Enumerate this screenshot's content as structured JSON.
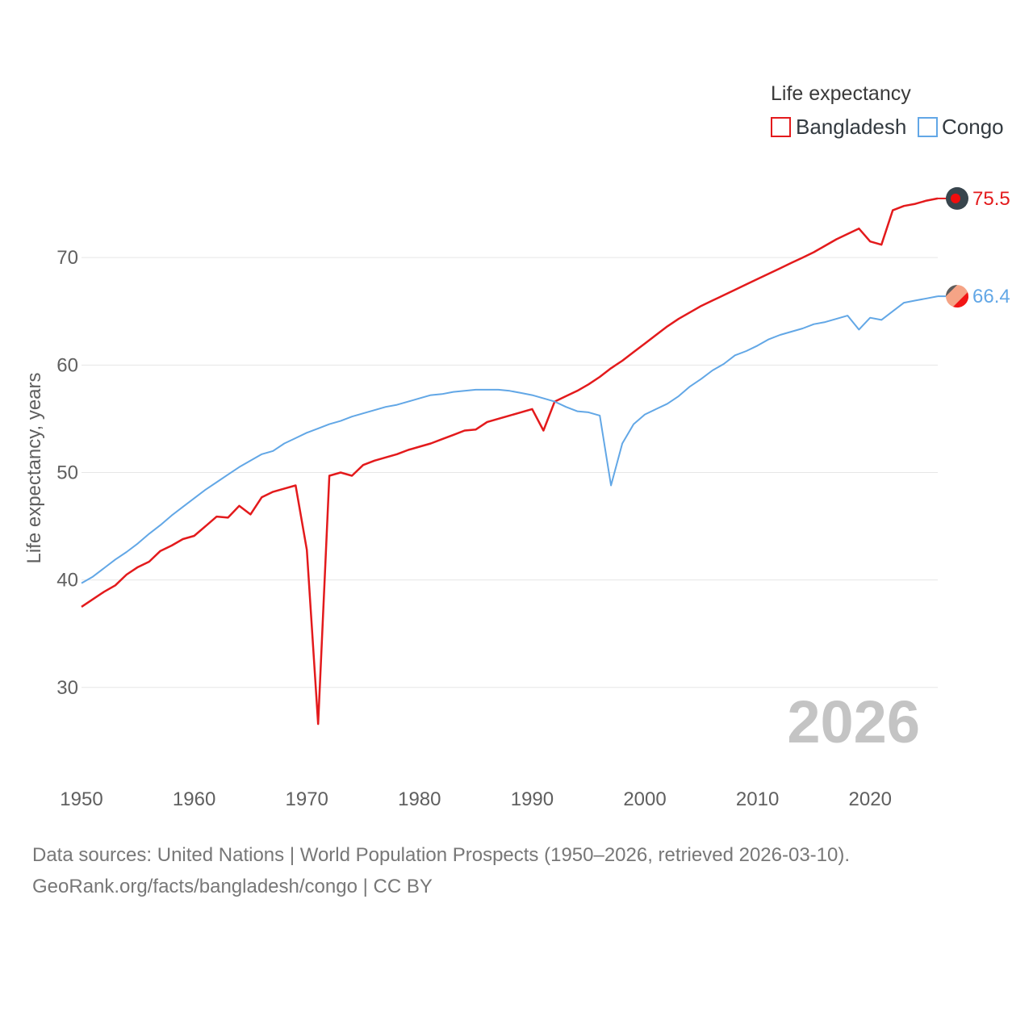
{
  "chart_data": {
    "type": "line",
    "legend_title": "Life expectancy",
    "ylabel": "Life expectancy, years",
    "xlim": [
      1950,
      2026
    ],
    "ylim": [
      23,
      80
    ],
    "x_ticks": [
      1950,
      1960,
      1970,
      1980,
      1990,
      2000,
      2010,
      2020
    ],
    "y_ticks": [
      30,
      40,
      50,
      60,
      70
    ],
    "grid": true,
    "legend_position": "top-right",
    "current_year": "2026",
    "x": [
      1950,
      1951,
      1952,
      1953,
      1954,
      1955,
      1956,
      1957,
      1958,
      1959,
      1960,
      1961,
      1962,
      1963,
      1964,
      1965,
      1966,
      1967,
      1968,
      1969,
      1970,
      1971,
      1972,
      1973,
      1974,
      1975,
      1976,
      1977,
      1978,
      1979,
      1980,
      1981,
      1982,
      1983,
      1984,
      1985,
      1986,
      1987,
      1988,
      1989,
      1990,
      1991,
      1992,
      1993,
      1994,
      1995,
      1996,
      1997,
      1998,
      1999,
      2000,
      2001,
      2002,
      2003,
      2004,
      2005,
      2006,
      2007,
      2008,
      2009,
      2010,
      2011,
      2012,
      2013,
      2014,
      2015,
      2016,
      2017,
      2018,
      2019,
      2020,
      2021,
      2022,
      2023,
      2024,
      2025,
      2026
    ],
    "series": [
      {
        "name": "Bangladesh",
        "color": "#e31a1c",
        "end_label": "75.5",
        "values": [
          37.5,
          38.2,
          38.9,
          39.5,
          40.5,
          41.2,
          41.7,
          42.7,
          43.2,
          43.8,
          44.1,
          45.0,
          45.9,
          45.8,
          46.9,
          46.1,
          47.7,
          48.2,
          48.5,
          48.8,
          42.8,
          26.6,
          49.7,
          50.0,
          49.7,
          50.7,
          51.1,
          51.4,
          51.7,
          52.1,
          52.4,
          52.7,
          53.1,
          53.5,
          53.9,
          54.0,
          54.7,
          55.0,
          55.3,
          55.6,
          55.9,
          53.9,
          56.6,
          57.1,
          57.6,
          58.2,
          58.9,
          59.7,
          60.4,
          61.2,
          62.0,
          62.8,
          63.6,
          64.3,
          64.9,
          65.5,
          66.0,
          66.5,
          67.0,
          67.5,
          68.0,
          68.5,
          69.0,
          69.5,
          70.0,
          70.5,
          71.1,
          71.7,
          72.2,
          72.7,
          71.5,
          71.2,
          74.4,
          74.8,
          75.0,
          75.3,
          75.5
        ]
      },
      {
        "name": "Congo",
        "color": "#62a7e6",
        "end_label": "66.4",
        "values": [
          39.7,
          40.3,
          41.1,
          41.9,
          42.6,
          43.4,
          44.3,
          45.1,
          46.0,
          46.8,
          47.6,
          48.4,
          49.1,
          49.8,
          50.5,
          51.1,
          51.7,
          52.0,
          52.7,
          53.2,
          53.7,
          54.1,
          54.5,
          54.8,
          55.2,
          55.5,
          55.8,
          56.1,
          56.3,
          56.6,
          56.9,
          57.2,
          57.3,
          57.5,
          57.6,
          57.7,
          57.7,
          57.7,
          57.6,
          57.4,
          57.2,
          56.9,
          56.6,
          56.1,
          55.7,
          55.6,
          55.3,
          48.8,
          52.7,
          54.5,
          55.4,
          55.9,
          56.4,
          57.1,
          58.0,
          58.7,
          59.5,
          60.1,
          60.9,
          61.3,
          61.8,
          62.4,
          62.8,
          63.1,
          63.4,
          63.8,
          64.0,
          64.3,
          64.6,
          63.3,
          64.4,
          64.2,
          65.0,
          65.8,
          66.0,
          66.2,
          66.4
        ]
      }
    ]
  },
  "source_lines": [
    "Data sources: United Nations | World Population Prospects (1950–2026, retrieved 2026-03-10).",
    "GeoRank.org/facts/bangladesh/congo | CC BY"
  ]
}
